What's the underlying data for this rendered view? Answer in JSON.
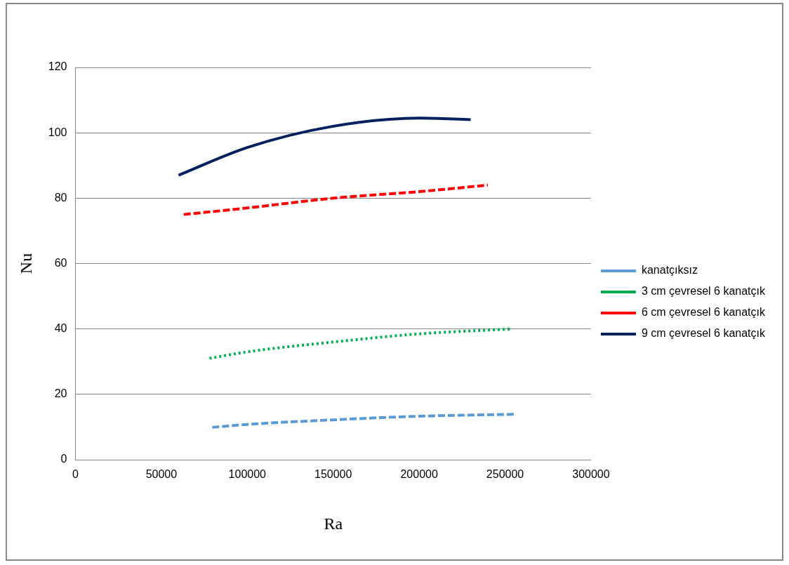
{
  "chart_data": {
    "type": "line",
    "xlabel": "Ra",
    "ylabel": "Nu",
    "xlim": [
      0,
      300000
    ],
    "xticks": [
      0,
      50000,
      100000,
      150000,
      200000,
      250000,
      300000
    ],
    "ylim": [
      0,
      120
    ],
    "yticks": [
      0,
      20,
      40,
      60,
      80,
      100,
      120
    ],
    "grid": "y",
    "legend": "right",
    "marker": "none",
    "series": [
      {
        "name": "kanatçıksız",
        "color": "#5b9bd5",
        "line_style": "dashed",
        "x": [
          79600,
          100000,
          150000,
          200000,
          255500
        ],
        "values": [
          9.9,
          10.8,
          12.2,
          13.3,
          13.9
        ]
      },
      {
        "name": "3 cm çevresel 6 kanatçık",
        "color": "#00b050",
        "line_style": "dotted",
        "x": [
          78000,
          100000,
          150000,
          200000,
          254000
        ],
        "values": [
          31,
          33,
          36,
          38.5,
          40
        ]
      },
      {
        "name": "6 cm çevresel 6 kanatçık",
        "color": "#ff0000",
        "line_style": "dashed",
        "x": [
          63000,
          100000,
          150000,
          200000,
          240000
        ],
        "values": [
          75,
          77,
          80,
          82,
          84
        ]
      },
      {
        "name": "9 cm çevresel 6 kanatçık",
        "color": "#002060",
        "line_style": "solid",
        "x": [
          60000,
          100000,
          150000,
          200000,
          230000
        ],
        "values": [
          87,
          95.5,
          102,
          104.5,
          104
        ]
      }
    ]
  }
}
